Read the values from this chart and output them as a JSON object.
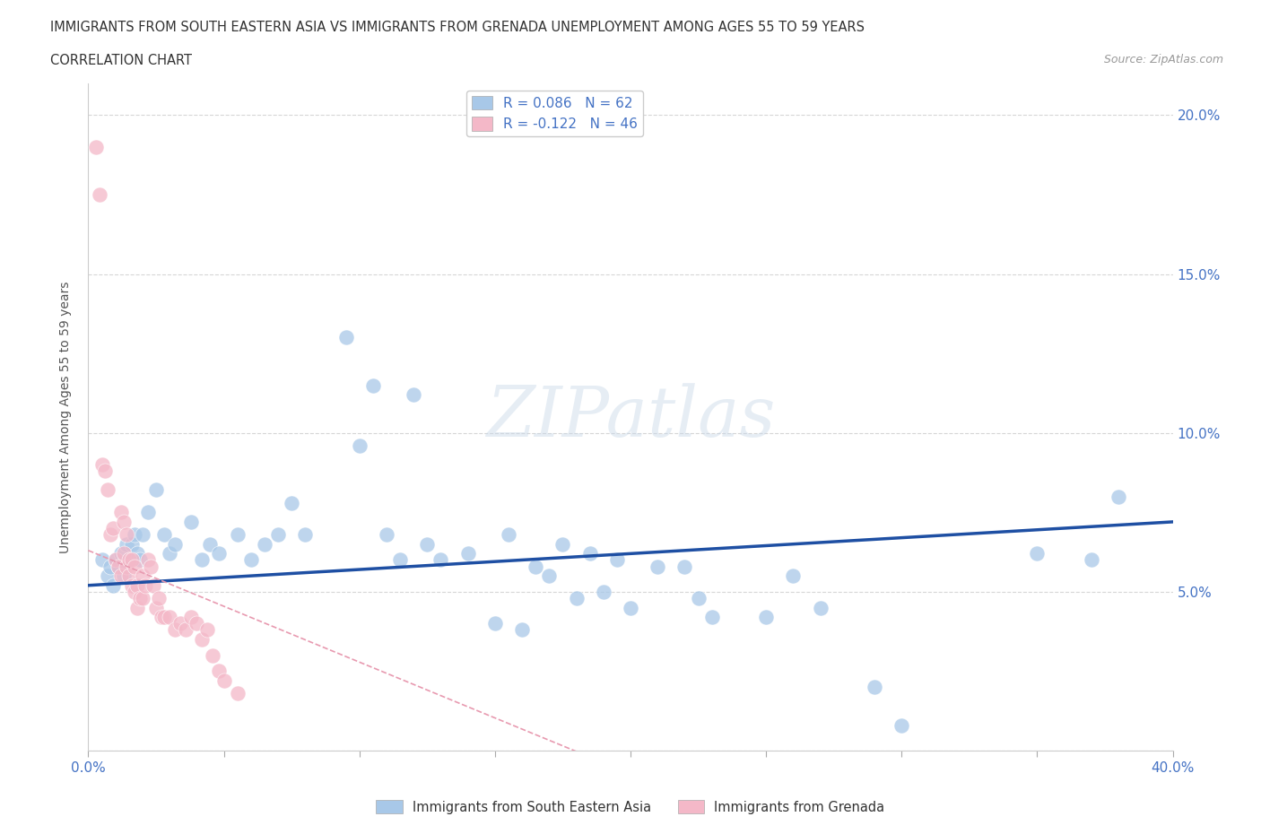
{
  "title_line1": "IMMIGRANTS FROM SOUTH EASTERN ASIA VS IMMIGRANTS FROM GRENADA UNEMPLOYMENT AMONG AGES 55 TO 59 YEARS",
  "title_line2": "CORRELATION CHART",
  "source_text": "Source: ZipAtlas.com",
  "ylabel": "Unemployment Among Ages 55 to 59 years",
  "watermark": "ZIPatlas",
  "legend1_label": "Immigrants from South Eastern Asia",
  "legend2_label": "Immigrants from Grenada",
  "r1": 0.086,
  "n1": 62,
  "r2": -0.122,
  "n2": 46,
  "color_blue": "#A8C8E8",
  "color_pink": "#F4B8C8",
  "line_blue": "#1E4FA3",
  "line_pink": "#E89AB0",
  "xlim": [
    0.0,
    0.4
  ],
  "ylim": [
    0.0,
    0.21
  ],
  "xticks": [
    0.0,
    0.05,
    0.1,
    0.15,
    0.2,
    0.25,
    0.3,
    0.35,
    0.4
  ],
  "yticks": [
    0.0,
    0.05,
    0.1,
    0.15,
    0.2
  ],
  "blue_x": [
    0.005,
    0.007,
    0.008,
    0.009,
    0.01,
    0.011,
    0.012,
    0.013,
    0.014,
    0.015,
    0.016,
    0.017,
    0.018,
    0.019,
    0.02,
    0.022,
    0.025,
    0.028,
    0.03,
    0.032,
    0.038,
    0.042,
    0.045,
    0.048,
    0.055,
    0.06,
    0.065,
    0.07,
    0.075,
    0.08,
    0.095,
    0.1,
    0.105,
    0.11,
    0.115,
    0.12,
    0.125,
    0.13,
    0.14,
    0.15,
    0.155,
    0.16,
    0.165,
    0.17,
    0.175,
    0.18,
    0.185,
    0.19,
    0.195,
    0.2,
    0.21,
    0.22,
    0.225,
    0.23,
    0.25,
    0.26,
    0.27,
    0.29,
    0.3,
    0.35,
    0.37,
    0.38
  ],
  "blue_y": [
    0.06,
    0.055,
    0.058,
    0.052,
    0.06,
    0.058,
    0.062,
    0.055,
    0.065,
    0.06,
    0.065,
    0.068,
    0.062,
    0.06,
    0.068,
    0.075,
    0.082,
    0.068,
    0.062,
    0.065,
    0.072,
    0.06,
    0.065,
    0.062,
    0.068,
    0.06,
    0.065,
    0.068,
    0.078,
    0.068,
    0.13,
    0.096,
    0.115,
    0.068,
    0.06,
    0.112,
    0.065,
    0.06,
    0.062,
    0.04,
    0.068,
    0.038,
    0.058,
    0.055,
    0.065,
    0.048,
    0.062,
    0.05,
    0.06,
    0.045,
    0.058,
    0.058,
    0.048,
    0.042,
    0.042,
    0.055,
    0.045,
    0.02,
    0.008,
    0.062,
    0.06,
    0.08
  ],
  "pink_x": [
    0.003,
    0.004,
    0.005,
    0.006,
    0.007,
    0.008,
    0.009,
    0.01,
    0.011,
    0.012,
    0.012,
    0.013,
    0.013,
    0.014,
    0.014,
    0.015,
    0.015,
    0.016,
    0.016,
    0.017,
    0.017,
    0.018,
    0.018,
    0.019,
    0.02,
    0.02,
    0.021,
    0.022,
    0.023,
    0.024,
    0.025,
    0.026,
    0.027,
    0.028,
    0.03,
    0.032,
    0.034,
    0.036,
    0.038,
    0.04,
    0.042,
    0.044,
    0.046,
    0.048,
    0.05,
    0.055
  ],
  "pink_y": [
    0.19,
    0.175,
    0.09,
    0.088,
    0.082,
    0.068,
    0.07,
    0.06,
    0.058,
    0.055,
    0.075,
    0.062,
    0.072,
    0.068,
    0.058,
    0.06,
    0.055,
    0.06,
    0.052,
    0.058,
    0.05,
    0.052,
    0.045,
    0.048,
    0.055,
    0.048,
    0.052,
    0.06,
    0.058,
    0.052,
    0.045,
    0.048,
    0.042,
    0.042,
    0.042,
    0.038,
    0.04,
    0.038,
    0.042,
    0.04,
    0.035,
    0.038,
    0.03,
    0.025,
    0.022,
    0.018
  ]
}
